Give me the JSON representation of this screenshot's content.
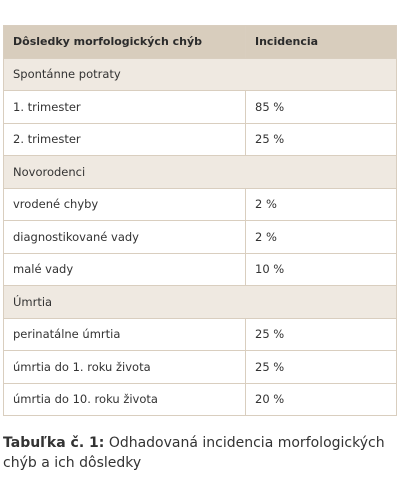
{
  "table": {
    "header": [
      "Dôsledky morfologických chýb",
      "Incidencia"
    ],
    "sections": [
      {
        "title": "Spontánne potraty",
        "rows": [
          [
            "1. trimester",
            "85 %"
          ],
          [
            "2. trimester",
            "25 %"
          ]
        ]
      },
      {
        "title": "Novorodenci",
        "rows": [
          [
            "vrodené chyby",
            "2 %"
          ],
          [
            "diagnostikované vady",
            "2 %"
          ],
          [
            "malé vady",
            "10 %"
          ]
        ]
      },
      {
        "title": "Úmrtia",
        "rows": [
          [
            "perinatálne úmrtia",
            "25 %"
          ],
          [
            "úmrtia do 1. roku života",
            "25 %"
          ],
          [
            "úmrtia do 10. roku života",
            "20 %"
          ]
        ]
      }
    ]
  },
  "caption": {
    "label": "Tabuľka č. 1:",
    "text": "Odhadovaná incidencia morfologických chýb a ich dôsledky"
  }
}
